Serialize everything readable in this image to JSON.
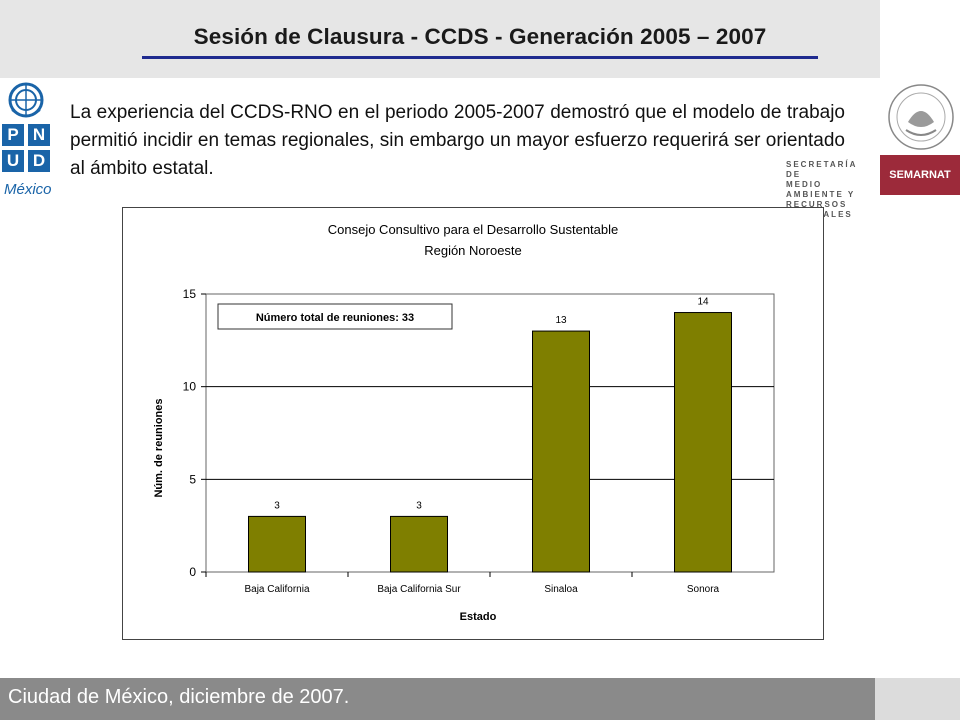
{
  "header": {
    "title": "Sesión de Clausura - CCDS - Generación 2005 – 2007"
  },
  "logos": {
    "undp_letters": [
      "P",
      "N",
      "U",
      "D"
    ],
    "undp_country": "México",
    "semarnat_lines": [
      "SECRETARÍA DE",
      "MEDIO AMBIENTE Y",
      "RECURSOS NATURALES"
    ],
    "semarnat_box": "SEMARNAT",
    "brand_blue": "#1a64a8",
    "semarnat_red": "#9c2a3a"
  },
  "body": {
    "paragraph": "La experiencia del CCDS-RNO en el periodo 2005-2007 demostró que el modelo de trabajo permitió incidir en temas regionales, sin embargo un mayor esfuerzo requerirá ser orientado al ámbito estatal."
  },
  "chart_data": {
    "type": "bar",
    "title": "Consejo Consultivo para el Desarrollo Sustentable",
    "subtitle": "Región Noroeste",
    "categories": [
      "Baja California",
      "Baja California Sur",
      "Sinaloa",
      "Sonora"
    ],
    "values": [
      3,
      3,
      13,
      14
    ],
    "data_labels": [
      "3",
      "3",
      "13",
      "14"
    ],
    "xlabel": "Estado",
    "ylabel": "Núm. de reuniones",
    "ylim": [
      0,
      15
    ],
    "yticks": [
      0,
      5,
      10,
      15
    ],
    "grid": true,
    "annotation": "Número total de reuniones: 33",
    "bar_color": "#7f7f00"
  },
  "footer": {
    "text": "Ciudad de México, diciembre de 2007."
  }
}
